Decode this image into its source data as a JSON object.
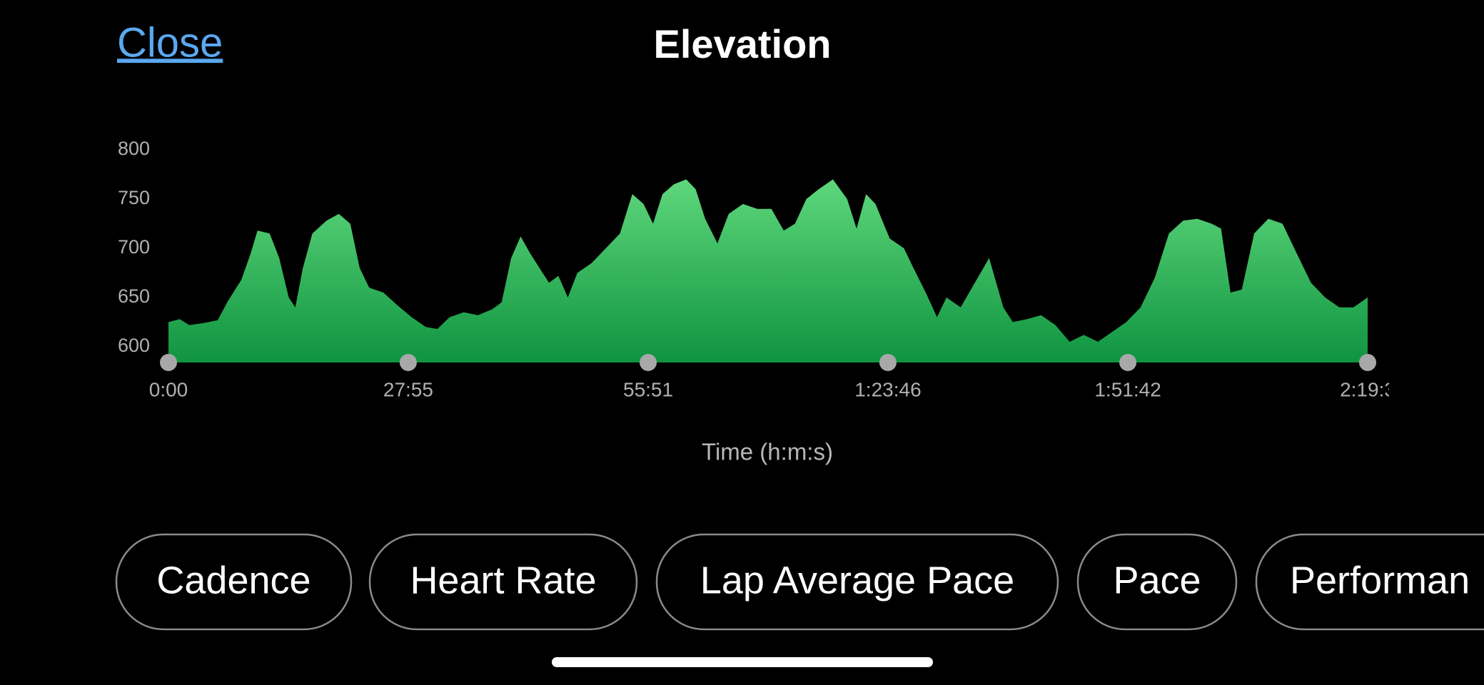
{
  "close": "Close",
  "title": "Elevation",
  "chart_data": {
    "type": "area",
    "xlabel": "Time (h:m:s)",
    "x": [
      0,
      79,
      145,
      245,
      344,
      410,
      509,
      575,
      622,
      707,
      774,
      840,
      886,
      939,
      1005,
      1104,
      1190,
      1270,
      1336,
      1402,
      1501,
      1600,
      1699,
      1798,
      1878,
      1964,
      2063,
      2162,
      2261,
      2327,
      2394,
      2460,
      2526,
      2592,
      2658,
      2724,
      2790,
      2856,
      2956,
      3055,
      3154,
      3240,
      3319,
      3385,
      3451,
      3531,
      3617,
      3683,
      3749,
      3835,
      3914,
      4013,
      4113,
      4212,
      4298,
      4377,
      4456,
      4542,
      4642,
      4741,
      4807,
      4873,
      4939,
      5038,
      5138,
      5204,
      5290,
      5369,
      5435,
      5534,
      5633,
      5733,
      5832,
      5898,
      5997,
      6096,
      6196,
      6295,
      6394,
      6493,
      6592,
      6691,
      6791,
      6890,
      6989,
      7088,
      7187,
      7287,
      7353,
      7419,
      7498,
      7584,
      7683,
      7782,
      7881,
      7981,
      8080,
      8179,
      8278,
      8377
    ],
    "values": [
      625,
      628,
      622,
      624,
      627,
      645,
      668,
      695,
      718,
      715,
      690,
      650,
      640,
      680,
      715,
      728,
      735,
      725,
      680,
      660,
      655,
      642,
      630,
      620,
      618,
      630,
      635,
      632,
      638,
      645,
      690,
      712,
      695,
      680,
      665,
      672,
      650,
      675,
      685,
      700,
      715,
      755,
      745,
      725,
      755,
      765,
      770,
      760,
      730,
      705,
      735,
      745,
      740,
      740,
      718,
      725,
      750,
      760,
      770,
      750,
      720,
      755,
      745,
      710,
      700,
      680,
      655,
      630,
      650,
      640,
      665,
      690,
      640,
      625,
      628,
      632,
      622,
      605,
      612,
      605,
      615,
      625,
      640,
      670,
      715,
      728,
      730,
      725,
      720,
      655,
      658,
      715,
      730,
      725,
      695,
      665,
      650,
      640,
      640,
      650
    ],
    "color": "#22b24c",
    "xlim": [
      0,
      8377
    ],
    "xticks": [
      {
        "value": 0,
        "label": "0:00"
      },
      {
        "value": 1675,
        "label": "27:55"
      },
      {
        "value": 3351,
        "label": "55:51"
      },
      {
        "value": 5026,
        "label": "1:23:46"
      },
      {
        "value": 6702,
        "label": "1:51:42"
      },
      {
        "value": 8377,
        "label": "2:19:3"
      }
    ],
    "ylim": [
      584,
      800
    ],
    "yticks": [
      600,
      650,
      700,
      750,
      800
    ]
  },
  "buttons": [
    "Cadence",
    "Heart Rate",
    "Lap Average Pace",
    "Pace",
    "Performan"
  ]
}
